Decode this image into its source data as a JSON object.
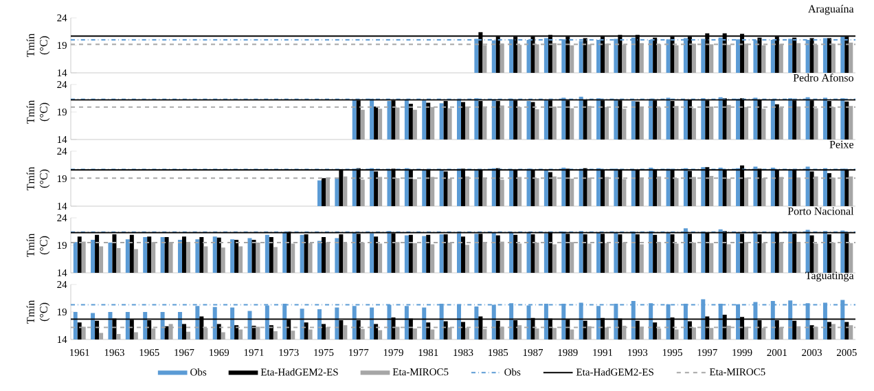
{
  "chart_data": [
    {
      "type": "bar",
      "title": "Araguaína",
      "ylabel": "Tmín (°C)",
      "tick_labels": "y",
      "ylim": [
        14,
        24
      ],
      "yticks": [
        14,
        19,
        24
      ],
      "categories": [
        "1961",
        null,
        "1963",
        null,
        "1965",
        null,
        "1967",
        null,
        "1969",
        null,
        "1971",
        null,
        "1973",
        null,
        "1975",
        null,
        "1977",
        null,
        "1979",
        null,
        "1981",
        null,
        "1983",
        null,
        "1985",
        null,
        "1987",
        null,
        "1989",
        null,
        "1991",
        null,
        "1993",
        null,
        "1995",
        null,
        "1997",
        null,
        "1999",
        null,
        "2001",
        null,
        "2003",
        null,
        "2005"
      ],
      "series": [
        {
          "color": "#5b9bd5",
          "values": [
            null,
            null,
            null,
            null,
            null,
            null,
            null,
            null,
            null,
            null,
            null,
            null,
            null,
            null,
            null,
            null,
            null,
            null,
            null,
            null,
            null,
            null,
            null,
            20.2,
            19.9,
            20.1,
            20.0,
            20.3,
            20.1,
            19.8,
            20.0,
            20.2,
            20.4,
            20.0,
            20.1,
            20.3,
            20.2,
            20.4,
            20.1,
            19.9,
            20.0,
            20.2,
            20.0,
            20.3,
            20.6
          ]
        },
        {
          "color": "#000000",
          "values": [
            null,
            null,
            null,
            null,
            null,
            null,
            null,
            null,
            null,
            null,
            null,
            null,
            null,
            null,
            null,
            null,
            null,
            null,
            null,
            null,
            null,
            null,
            null,
            21.4,
            20.6,
            20.6,
            20.6,
            20.9,
            20.6,
            20.3,
            20.6,
            20.9,
            20.9,
            20.4,
            20.6,
            20.6,
            21.2,
            21.2,
            21.1,
            20.4,
            20.6,
            20.4,
            20.3,
            20.3,
            20.6
          ]
        },
        {
          "color": "#a6a6a6",
          "values": [
            null,
            null,
            null,
            null,
            null,
            null,
            null,
            null,
            null,
            null,
            null,
            null,
            null,
            null,
            null,
            null,
            null,
            null,
            null,
            null,
            null,
            null,
            null,
            19.0,
            19.3,
            19.1,
            19.2,
            19.4,
            19.0,
            19.2,
            19.3,
            19.1,
            19.4,
            19.2,
            19.0,
            19.3,
            19.2,
            19.1,
            19.3,
            19.0,
            19.2,
            19.4,
            19.1,
            19.3,
            19.5
          ]
        }
      ],
      "ref_lines": [
        {
          "axis": "y",
          "value": 20.0,
          "color": "#5b9bd5",
          "line_style": "dashdot"
        },
        {
          "axis": "y",
          "value": 20.7,
          "color": "#000000",
          "line_style": "solid"
        },
        {
          "axis": "y",
          "value": 19.2,
          "color": "#a6a6a6",
          "line_style": "dashed"
        }
      ]
    },
    {
      "type": "bar",
      "title": "Pedro Afonso",
      "ylabel": "Tmín (°C)",
      "tick_labels": "y",
      "ylim": [
        14,
        24
      ],
      "yticks": [
        14,
        19,
        24
      ],
      "categories": [
        "1961",
        null,
        "1963",
        null,
        "1965",
        null,
        "1967",
        null,
        "1969",
        null,
        "1971",
        null,
        "1973",
        null,
        "1975",
        null,
        "1977",
        null,
        "1979",
        null,
        "1981",
        null,
        "1983",
        null,
        "1985",
        null,
        "1987",
        null,
        "1989",
        null,
        "1991",
        null,
        "1993",
        null,
        "1995",
        null,
        "1997",
        null,
        "1999",
        null,
        "2001",
        null,
        "2003",
        null,
        "2005"
      ],
      "series": [
        {
          "color": "#5b9bd5",
          "values": [
            null,
            null,
            null,
            null,
            null,
            null,
            null,
            null,
            null,
            null,
            null,
            null,
            null,
            null,
            null,
            null,
            21.2,
            21.4,
            21.0,
            21.3,
            21.1,
            20.6,
            21.2,
            21.5,
            21.3,
            21.4,
            21.0,
            21.2,
            21.6,
            21.8,
            21.5,
            21.3,
            21.0,
            21.4,
            21.6,
            21.2,
            21.5,
            21.7,
            21.4,
            21.6,
            21.3,
            21.5,
            21.7,
            21.6,
            21.5
          ]
        },
        {
          "color": "#000000",
          "values": [
            null,
            null,
            null,
            null,
            null,
            null,
            null,
            null,
            null,
            null,
            null,
            null,
            null,
            null,
            null,
            null,
            21.1,
            20.0,
            21.1,
            20.5,
            20.7,
            21.0,
            20.8,
            21.0,
            21.0,
            21.1,
            20.8,
            21.1,
            21.1,
            21.2,
            21.1,
            21.1,
            20.9,
            21.1,
            21.0,
            21.2,
            21.1,
            21.5,
            21.5,
            21.2,
            20.4,
            21.1,
            21.1,
            21.0,
            20.9
          ]
        },
        {
          "color": "#a6a6a6",
          "values": [
            null,
            null,
            null,
            null,
            null,
            null,
            null,
            null,
            null,
            null,
            null,
            null,
            null,
            null,
            null,
            null,
            19.4,
            19.6,
            19.8,
            19.4,
            19.9,
            19.7,
            20.0,
            19.8,
            20.2,
            19.9,
            19.5,
            20.0,
            19.7,
            20.1,
            19.9,
            19.6,
            20.0,
            19.8,
            20.1,
            19.7,
            20.0,
            20.3,
            19.9,
            19.6,
            19.8,
            20.0,
            19.7,
            19.9,
            20.1
          ]
        }
      ],
      "ref_lines": [
        {
          "axis": "y",
          "value": 21.3,
          "color": "#5b9bd5",
          "line_style": "dashdot"
        },
        {
          "axis": "y",
          "value": 21.2,
          "color": "#000000",
          "line_style": "solid"
        },
        {
          "axis": "y",
          "value": 19.9,
          "color": "#a6a6a6",
          "line_style": "dashed"
        }
      ]
    },
    {
      "type": "bar",
      "title": "Peixe",
      "ylabel": "Tmín (°C)",
      "tick_labels": "y",
      "ylim": [
        14,
        24
      ],
      "yticks": [
        14,
        19,
        24
      ],
      "categories": [
        "1961",
        null,
        "1963",
        null,
        "1965",
        null,
        "1967",
        null,
        "1969",
        null,
        "1971",
        null,
        "1973",
        null,
        "1975",
        null,
        "1977",
        null,
        "1979",
        null,
        "1981",
        null,
        "1983",
        null,
        "1985",
        null,
        "1987",
        null,
        "1989",
        null,
        "1991",
        null,
        "1993",
        null,
        "1995",
        null,
        "1997",
        null,
        "1999",
        null,
        "2001",
        null,
        "2003",
        null,
        "2005"
      ],
      "series": [
        {
          "color": "#5b9bd5",
          "values": [
            null,
            null,
            null,
            null,
            null,
            null,
            null,
            null,
            null,
            null,
            null,
            null,
            null,
            null,
            18.7,
            19.2,
            20.8,
            20.9,
            20.6,
            20.9,
            20.5,
            20.6,
            20.8,
            20.7,
            20.9,
            20.5,
            20.8,
            20.6,
            21.0,
            20.7,
            20.9,
            20.8,
            20.6,
            21.0,
            20.8,
            20.9,
            21.1,
            21.0,
            20.9,
            21.2,
            21.0,
            20.7,
            21.2,
            20.9,
            20.8
          ]
        },
        {
          "color": "#000000",
          "values": [
            null,
            null,
            null,
            null,
            null,
            null,
            null,
            null,
            null,
            null,
            null,
            null,
            null,
            null,
            19.1,
            20.7,
            20.9,
            20.3,
            20.8,
            20.5,
            20.5,
            20.3,
            20.8,
            20.5,
            20.9,
            20.6,
            20.5,
            20.2,
            20.8,
            20.9,
            20.6,
            20.6,
            20.5,
            20.7,
            20.6,
            20.4,
            21.1,
            20.6,
            21.4,
            20.8,
            20.5,
            20.5,
            20.3,
            20.0,
            20.5
          ]
        },
        {
          "color": "#a6a6a6",
          "values": [
            null,
            null,
            null,
            null,
            null,
            null,
            null,
            null,
            null,
            null,
            null,
            null,
            null,
            null,
            19.2,
            19.4,
            18.8,
            19.3,
            19.1,
            18.9,
            19.3,
            19.0,
            19.4,
            19.2,
            18.8,
            19.3,
            19.1,
            19.4,
            19.0,
            19.2,
            19.3,
            18.9,
            19.2,
            19.4,
            19.1,
            19.3,
            19.5,
            19.0,
            19.2,
            19.1,
            19.3,
            19.0,
            19.4,
            19.2,
            19.4
          ]
        }
      ],
      "ref_lines": [
        {
          "axis": "y",
          "value": 20.7,
          "color": "#5b9bd5",
          "line_style": "dashdot"
        },
        {
          "axis": "y",
          "value": 20.6,
          "color": "#000000",
          "line_style": "solid"
        },
        {
          "axis": "y",
          "value": 19.1,
          "color": "#a6a6a6",
          "line_style": "dashed"
        }
      ]
    },
    {
      "type": "bar",
      "title": "Porto Nacional",
      "ylabel": "Tmín (°C)",
      "tick_labels": "y",
      "ylim": [
        14,
        24
      ],
      "yticks": [
        14,
        19,
        24
      ],
      "categories": [
        "1961",
        null,
        "1963",
        null,
        "1965",
        null,
        "1967",
        null,
        "1969",
        null,
        "1971",
        null,
        "1973",
        null,
        "1975",
        null,
        "1977",
        null,
        "1979",
        null,
        "1981",
        null,
        "1983",
        null,
        "1985",
        null,
        "1987",
        null,
        "1989",
        null,
        "1991",
        null,
        "1993",
        null,
        "1995",
        null,
        "1997",
        null,
        "1999",
        null,
        "2001",
        null,
        "2003",
        null,
        "2005"
      ],
      "series": [
        {
          "color": "#5b9bd5",
          "values": [
            19.6,
            20.0,
            19.5,
            20.1,
            20.5,
            20.5,
            20.0,
            20.1,
            20.6,
            20.1,
            20.3,
            20.9,
            21.4,
            20.9,
            19.8,
            20.3,
            21.3,
            21.2,
            21.6,
            20.8,
            20.7,
            21.0,
            21.2,
            21.1,
            21.3,
            21.3,
            21.4,
            21.2,
            21.5,
            21.6,
            21.3,
            21.4,
            21.5,
            21.6,
            21.4,
            22.1,
            21.5,
            21.9,
            21.3,
            21.4,
            21.5,
            21.5,
            21.8,
            21.6,
            21.7
          ]
        },
        {
          "color": "#000000",
          "values": [
            20.6,
            20.9,
            21.0,
            20.9,
            20.6,
            20.5,
            20.6,
            20.5,
            20.4,
            20.0,
            20.0,
            20.5,
            21.5,
            21.0,
            20.5,
            21.0,
            21.1,
            20.6,
            21.2,
            20.9,
            20.9,
            21.0,
            20.6,
            21.1,
            20.8,
            20.9,
            21.0,
            21.5,
            21.1,
            21.0,
            21.1,
            21.0,
            21.0,
            20.9,
            21.0,
            21.1,
            21.3,
            21.6,
            21.1,
            21.0,
            21.3,
            21.1,
            20.8,
            21.0,
            21.2
          ]
        },
        {
          "color": "#a6a6a6",
          "values": [
            19.7,
            18.8,
            18.5,
            18.3,
            19.6,
            19.6,
            19.4,
            18.8,
            18.6,
            18.8,
            19.5,
            18.7,
            19.3,
            19.4,
            19.5,
            19.4,
            19.5,
            19.3,
            19.6,
            19.4,
            19.2,
            19.5,
            19.1,
            19.4,
            19.7,
            19.3,
            19.5,
            19.2,
            19.6,
            19.3,
            19.4,
            19.5,
            19.2,
            19.6,
            19.3,
            19.5,
            19.4,
            19.2,
            19.6,
            19.4,
            19.5,
            19.6,
            19.3,
            19.5,
            19.4
          ]
        }
      ],
      "ref_lines": [
        {
          "axis": "y",
          "value": 21.4,
          "color": "#5b9bd5",
          "line_style": "dashdot"
        },
        {
          "axis": "y",
          "value": 21.3,
          "color": "#000000",
          "line_style": "solid"
        },
        {
          "axis": "y",
          "value": 19.5,
          "color": "#a6a6a6",
          "line_style": "dashed"
        }
      ]
    },
    {
      "type": "bar",
      "title": "Taguatinga",
      "ylabel": "Tmín (°C)",
      "legend": "bottom",
      "ylim": [
        14,
        24
      ],
      "yticks": [
        14,
        19,
        24
      ],
      "categories": [
        "1961",
        null,
        "1963",
        null,
        "1965",
        null,
        "1967",
        null,
        "1969",
        null,
        "1971",
        null,
        "1973",
        null,
        "1975",
        null,
        "1977",
        null,
        "1979",
        null,
        "1981",
        null,
        "1983",
        null,
        "1985",
        null,
        "1987",
        null,
        "1989",
        null,
        "1991",
        null,
        "1993",
        null,
        "1995",
        null,
        "1997",
        null,
        "1999",
        null,
        "2001",
        null,
        "2003",
        null,
        "2005"
      ],
      "series": [
        {
          "name": "Obs",
          "color": "#5b9bd5",
          "values": [
            19.0,
            18.8,
            19.0,
            19.0,
            19.0,
            19.0,
            19.0,
            20.1,
            19.9,
            19.8,
            19.2,
            20.2,
            20.5,
            19.6,
            19.5,
            19.8,
            20.1,
            19.8,
            20.3,
            20.1,
            19.8,
            20.5,
            20.4,
            20.0,
            20.3,
            20.6,
            20.2,
            20.5,
            20.5,
            20.7,
            20.1,
            20.5,
            21.0,
            20.6,
            20.4,
            20.5,
            21.3,
            20.5,
            20.4,
            20.8,
            21.0,
            21.1,
            20.6,
            20.7,
            21.2
          ]
        },
        {
          "name": "Eta-HadGEM2-ES",
          "color": "#000000",
          "values": [
            17.1,
            17.4,
            17.8,
            17.6,
            17.5,
            16.4,
            16.8,
            18.2,
            16.8,
            16.6,
            16.5,
            16.6,
            17.6,
            17.1,
            16.8,
            17.5,
            17.5,
            16.8,
            18.0,
            17.8,
            17.1,
            17.3,
            17.2,
            18.2,
            17.4,
            17.5,
            17.9,
            17.8,
            17.6,
            17.4,
            17.9,
            17.8,
            17.4,
            17.1,
            18.0,
            17.3,
            18.2,
            18.5,
            18.1,
            17.5,
            17.5,
            17.4,
            16.6,
            17.2,
            17.2
          ]
        },
        {
          "name": "Eta-MIROC5",
          "color": "#a6a6a6",
          "values": [
            16.3,
            15.2,
            15.0,
            15.3,
            16.0,
            16.8,
            15.4,
            16.1,
            15.3,
            15.8,
            16.3,
            15.5,
            15.6,
            15.8,
            16.2,
            16.6,
            15.9,
            15.7,
            16.3,
            16.0,
            15.8,
            16.2,
            16.1,
            15.9,
            16.3,
            16.6,
            16.0,
            16.1,
            15.8,
            16.4,
            16.2,
            16.5,
            16.3,
            16.0,
            15.8,
            16.2,
            16.1,
            16.5,
            16.3,
            16.1,
            16.2,
            16.4,
            16.3,
            16.8,
            16.6
          ]
        }
      ],
      "ref_lines": [
        {
          "axis": "y",
          "value": 20.3,
          "label": "Obs",
          "color": "#5b9bd5",
          "line_style": "dashdot"
        },
        {
          "axis": "y",
          "value": 17.7,
          "label": "Eta-HadGEM2-ES",
          "color": "#000000",
          "line_style": "solid"
        },
        {
          "axis": "y",
          "value": 16.2,
          "label": "Eta-MIROC5",
          "color": "#a6a6a6",
          "line_style": "dashed"
        }
      ]
    }
  ]
}
